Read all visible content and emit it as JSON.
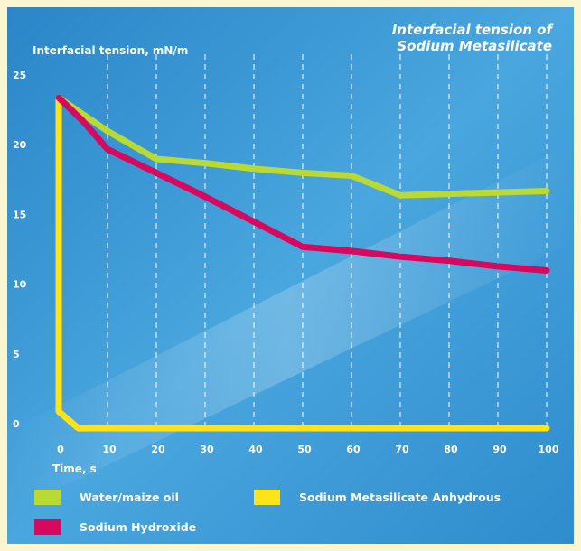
{
  "chart_data": {
    "type": "line",
    "title_lines": [
      "Interfacial tension of",
      "Sodium Metasilicate"
    ],
    "ylabel": "Interfacial tension, mN/m",
    "xlabel": "Time, s",
    "xlim": [
      0,
      100
    ],
    "ylim": [
      0,
      25
    ],
    "x_ticks": [
      "0",
      "10",
      "20",
      "30",
      "40",
      "50",
      "60",
      "70",
      "80",
      "90",
      "100"
    ],
    "y_ticks": [
      "0",
      "5",
      "10",
      "15",
      "20",
      "25"
    ],
    "grid": "vertical dashed",
    "legend_position": "bottom",
    "series": [
      {
        "name": "Water/maize oil",
        "color": "#b9d934",
        "points": [
          [
            0,
            23.7
          ],
          [
            5,
            22.5
          ],
          [
            10,
            21.3
          ],
          [
            20,
            19.3
          ],
          [
            30,
            19.0
          ],
          [
            40,
            18.6
          ],
          [
            50,
            18.3
          ],
          [
            60,
            18.1
          ],
          [
            70,
            16.7
          ],
          [
            80,
            16.8
          ],
          [
            90,
            16.9
          ],
          [
            100,
            17.0
          ]
        ]
      },
      {
        "name": "Sodium Metasilicate Anhydrous",
        "color": "#ffe31a",
        "points": [
          [
            0,
            23.7
          ],
          [
            0,
            1.2
          ],
          [
            4,
            0.0
          ],
          [
            10,
            0.0
          ],
          [
            20,
            0.0
          ],
          [
            50,
            0.0
          ],
          [
            100,
            0.0
          ]
        ]
      },
      {
        "name": "Sodium Hydroxide",
        "color": "#d6095f",
        "points": [
          [
            0,
            23.7
          ],
          [
            5,
            22.0
          ],
          [
            10,
            20.0
          ],
          [
            20,
            18.3
          ],
          [
            30,
            16.6
          ],
          [
            40,
            14.8
          ],
          [
            50,
            13.0
          ],
          [
            60,
            12.7
          ],
          [
            70,
            12.3
          ],
          [
            80,
            12.0
          ],
          [
            90,
            11.6
          ],
          [
            100,
            11.3
          ]
        ]
      }
    ]
  }
}
